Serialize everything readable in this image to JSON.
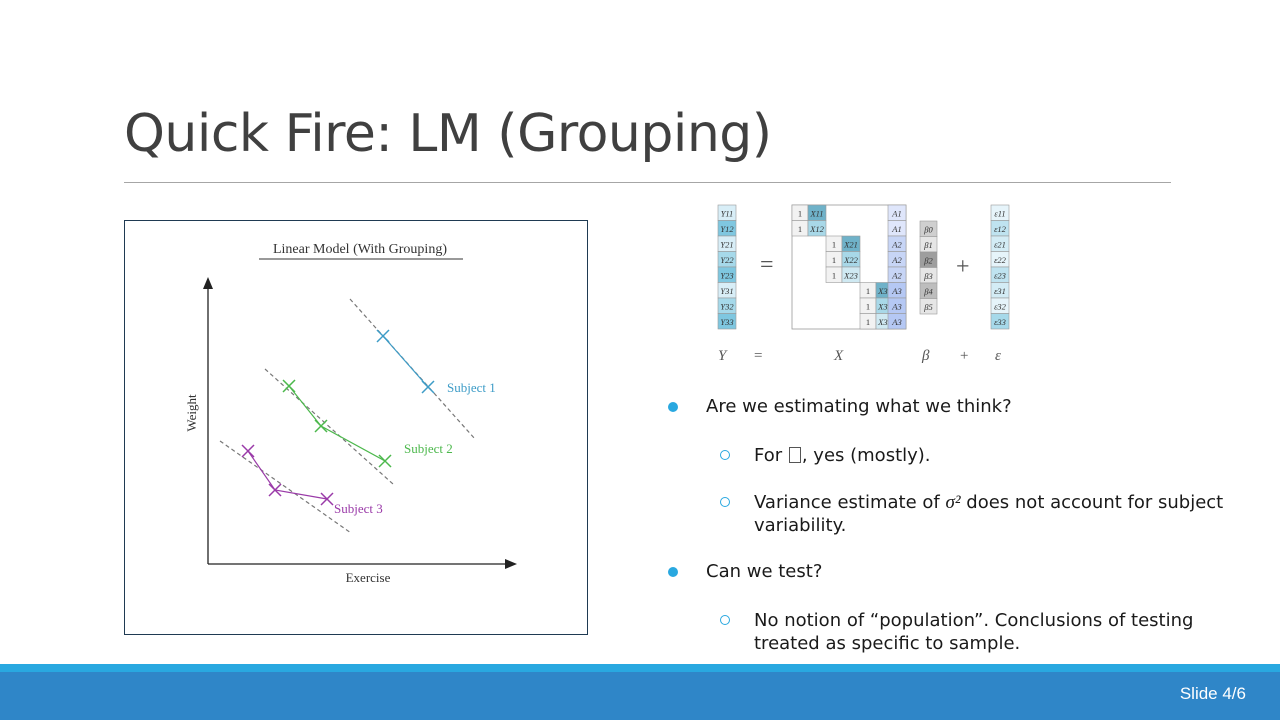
{
  "slide": {
    "title": "Quick Fire: LM (Grouping)",
    "slide_number": "Slide 4/6"
  },
  "figure": {
    "title": "Linear Model (With Grouping)",
    "xlabel": "Exercise",
    "ylabel": "Weight",
    "subjects": [
      {
        "label": "Subject 1",
        "color": "#3d9cc7"
      },
      {
        "label": "Subject 2",
        "color": "#4cb84c"
      },
      {
        "label": "Subject 3",
        "color": "#9a3aa8"
      }
    ]
  },
  "equation": {
    "Y_labels": [
      "Y11",
      "Y12",
      "Y21",
      "Y22",
      "Y23",
      "Y31",
      "Y32",
      "Y33"
    ],
    "beta_labels": [
      "β0",
      "β1",
      "β2",
      "β3",
      "β4",
      "β5"
    ],
    "eps_labels": [
      "ε11",
      "ε12",
      "ε21",
      "ε22",
      "ε23",
      "ε31",
      "ε32",
      "ε33"
    ],
    "bottom": {
      "Y": "Y",
      "eq": "=",
      "X": "X",
      "beta": "β",
      "plus": "+",
      "eps": "ε"
    }
  },
  "bullets": [
    {
      "text": "Are we estimating what we think?",
      "children": [
        {
          "text_before": "For ",
          "text_after": ", yes (mostly)."
        },
        {
          "text_before": "Variance estimate of ",
          "math": "σ²",
          "text_after": " does not account for subject variability."
        }
      ]
    },
    {
      "text": "Can we test?",
      "children": [
        {
          "text": "No notion of “population”. Conclusions of testing treated as specific to sample."
        }
      ]
    }
  ]
}
